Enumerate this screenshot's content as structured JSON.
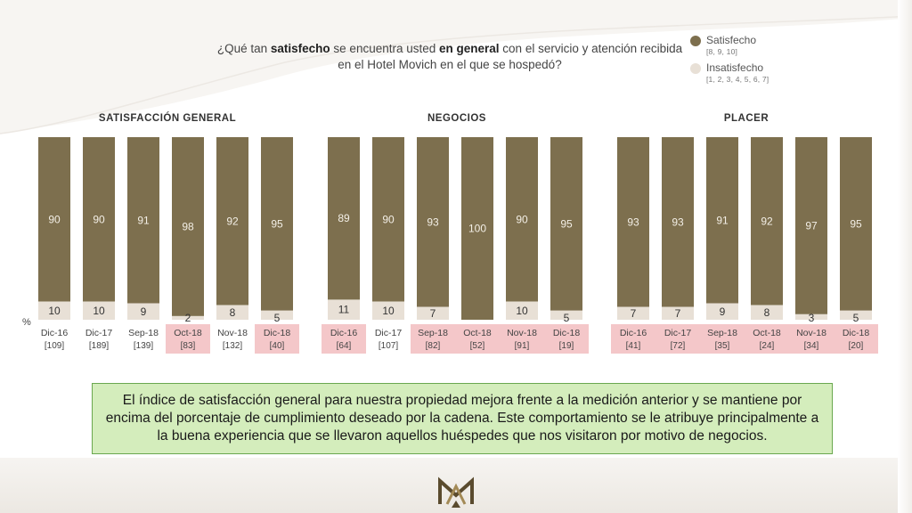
{
  "question": {
    "part1": "¿Qué tan ",
    "bold1": "satisfecho",
    "part2": " se encuentra usted ",
    "bold2": "en general",
    "part3": " con el servicio y atención recibida en el Hotel Movich en el que se hospedó?"
  },
  "legend": {
    "satisfied_label": "Satisfecho",
    "satisfied_range": "[8, 9, 10]",
    "unsatisfied_label": "Insatisfecho",
    "unsatisfied_range": "[1, 2, 3, 4, 5, 6, 7]"
  },
  "colors": {
    "satisfied": "#7d6f4e",
    "unsatisfied": "#e8e0d6",
    "highlight_label_bg": "#f4c7c9",
    "summary_bg": "#d4edbc",
    "summary_border": "#6aa84f"
  },
  "percent_sign": "%",
  "summary_text": "El índice de satisfacción general para nuestra propiedad mejora frente a la medición anterior y se mantiene por encima del porcentaje de cumplimiento deseado por la cadena. Este comportamiento se le atribuye principalmente a la buena experiencia que se llevaron aquellos huéspedes que nos visitaron por motivo de negocios.",
  "chart_data": [
    {
      "type": "bar",
      "stacked": true,
      "title": "SATISFACCIÓN GENERAL",
      "categories": [
        "Dic-16",
        "Dic-17",
        "Sep-18",
        "Oct-18",
        "Nov-18",
        "Dic-18"
      ],
      "sample_sizes": [
        "[109]",
        "[189]",
        "[139]",
        "[83]",
        "[132]",
        "[40]"
      ],
      "highlighted": [
        false,
        false,
        false,
        true,
        false,
        true
      ],
      "series": [
        {
          "name": "Satisfecho",
          "values": [
            90,
            90,
            91,
            98,
            92,
            95
          ]
        },
        {
          "name": "Insatisfecho",
          "values": [
            10,
            10,
            9,
            2,
            8,
            5
          ]
        }
      ],
      "ylim": [
        0,
        100
      ]
    },
    {
      "type": "bar",
      "stacked": true,
      "title": "NEGOCIOS",
      "categories": [
        "Dic-16",
        "Dic-17",
        "Sep-18",
        "Oct-18",
        "Nov-18",
        "Dic-18"
      ],
      "sample_sizes": [
        "[64]",
        "[107]",
        "[82]",
        "[52]",
        "[91]",
        "[19]"
      ],
      "highlighted": [
        true,
        false,
        true,
        true,
        true,
        true
      ],
      "series": [
        {
          "name": "Satisfecho",
          "values": [
            89,
            90,
            93,
            100,
            90,
            95
          ]
        },
        {
          "name": "Insatisfecho",
          "values": [
            11,
            10,
            7,
            0,
            10,
            5
          ]
        }
      ],
      "ylim": [
        0,
        100
      ]
    },
    {
      "type": "bar",
      "stacked": true,
      "title": "PLACER",
      "categories": [
        "Dic-16",
        "Dic-17",
        "Sep-18",
        "Oct-18",
        "Nov-18",
        "Dic-18"
      ],
      "sample_sizes": [
        "[41]",
        "[72]",
        "[35]",
        "[24]",
        "[34]",
        "[20]"
      ],
      "highlighted": [
        true,
        true,
        true,
        true,
        true,
        true
      ],
      "series": [
        {
          "name": "Satisfecho",
          "values": [
            93,
            93,
            91,
            92,
            97,
            95
          ]
        },
        {
          "name": "Insatisfecho",
          "values": [
            7,
            7,
            9,
            8,
            3,
            5
          ]
        }
      ],
      "ylim": [
        0,
        100
      ]
    }
  ]
}
